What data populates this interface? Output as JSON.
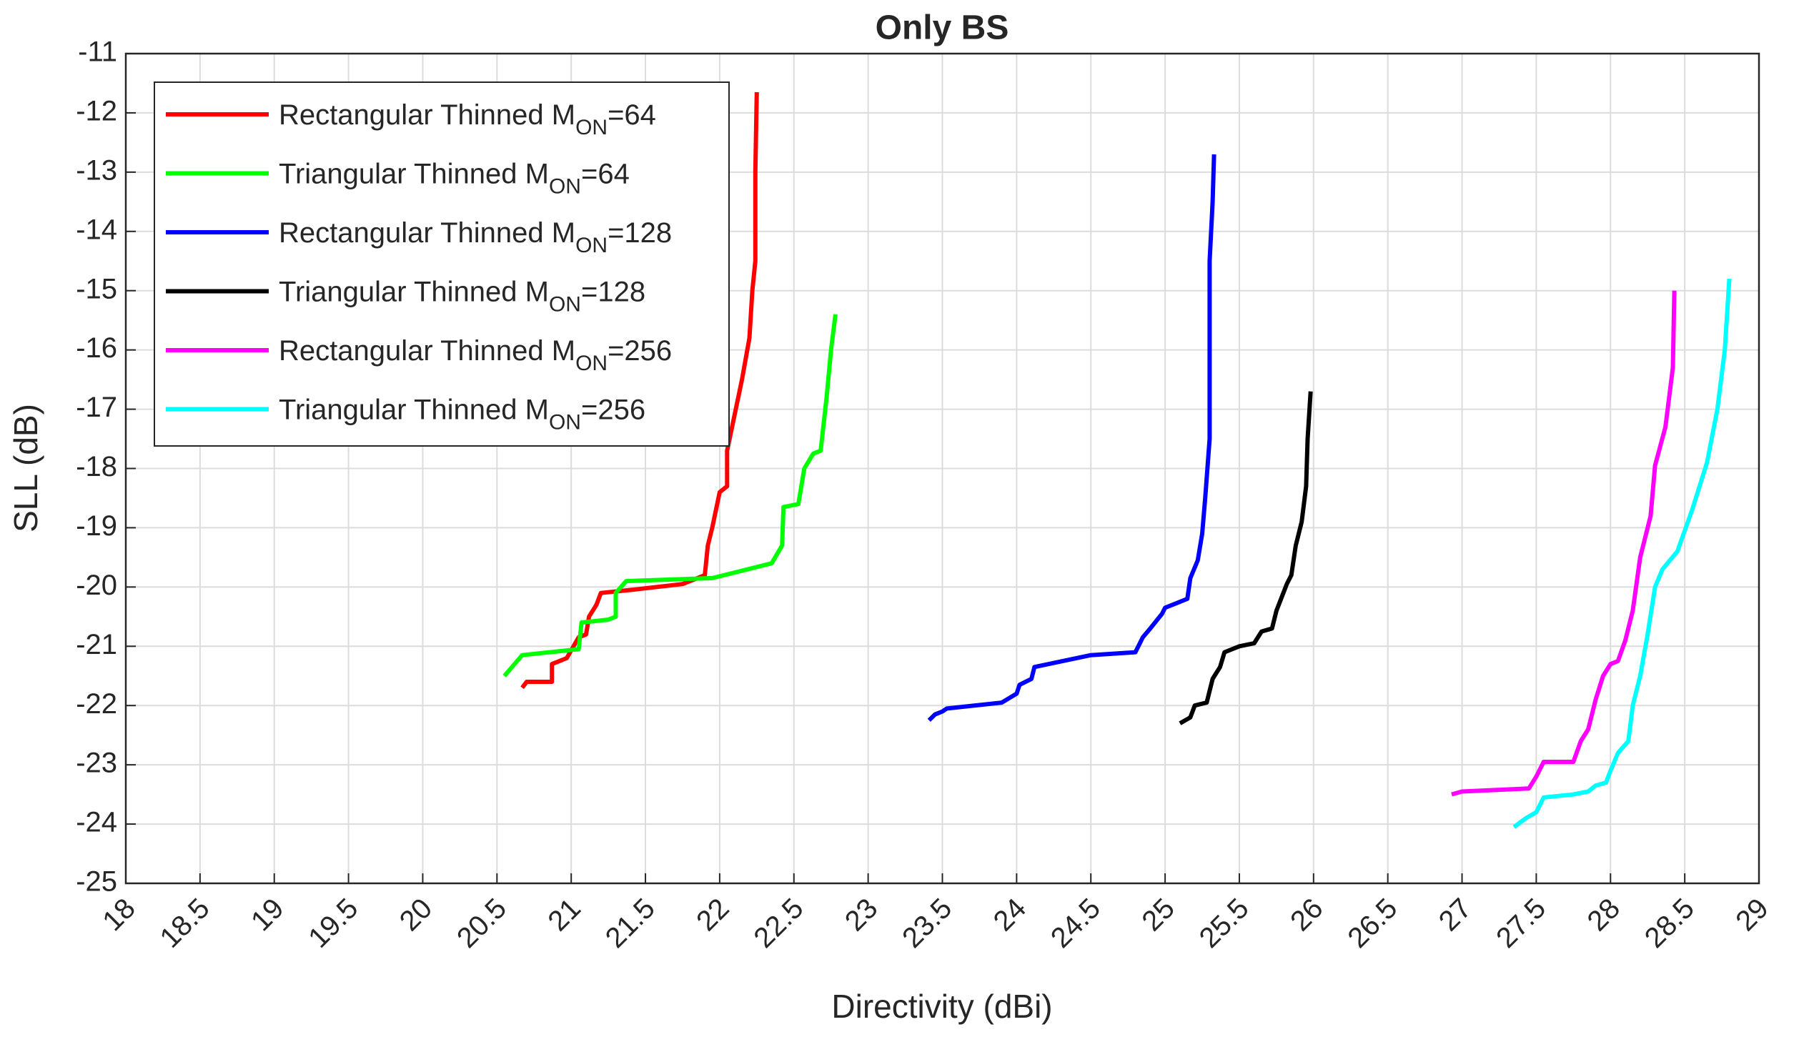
{
  "chart_data": {
    "type": "line",
    "title": "Only BS",
    "x_label": "Directivity (dBi)",
    "y_label": "SLL (dB)",
    "xlim": [
      18,
      29
    ],
    "ylim": [
      -25,
      -11
    ],
    "xticks": [
      18,
      18.5,
      19,
      19.5,
      20,
      20.5,
      21,
      21.5,
      22,
      22.5,
      23,
      23.5,
      24,
      24.5,
      25,
      25.5,
      26,
      26.5,
      27,
      27.5,
      28,
      28.5,
      29
    ],
    "yticks": [
      -25,
      -24,
      -23,
      -22,
      -21,
      -20,
      -19,
      -18,
      -17,
      -16,
      -15,
      -14,
      -13,
      -12,
      -11
    ],
    "grid": true,
    "legend": "upper-left",
    "series": [
      {
        "name": "Rectangular Thinned MON=64",
        "color": "#ff0000",
        "x": [
          20.67,
          20.7,
          20.87,
          20.87,
          20.97,
          21.05,
          21.1,
          21.12,
          21.17,
          21.2,
          21.4,
          21.75,
          21.9,
          21.92,
          21.95,
          22.0,
          22.05,
          22.05,
          22.1,
          22.15,
          22.2,
          22.22,
          22.24,
          22.24,
          22.25
        ],
        "values": [
          -21.7,
          -21.6,
          -21.6,
          -21.3,
          -21.2,
          -20.85,
          -20.8,
          -20.5,
          -20.3,
          -20.1,
          -20.05,
          -19.95,
          -19.8,
          -19.3,
          -19.0,
          -18.4,
          -18.3,
          -17.7,
          -17.1,
          -16.5,
          -15.8,
          -15.0,
          -14.5,
          -13.0,
          -11.65
        ]
      },
      {
        "name": "Triangular Thinned MON=64",
        "color": "#00ff00",
        "x": [
          20.55,
          20.67,
          21.05,
          21.07,
          21.25,
          21.3,
          21.3,
          21.37,
          21.95,
          22.35,
          22.42,
          22.43,
          22.53,
          22.57,
          22.63,
          22.68,
          22.72,
          22.75,
          22.78
        ],
        "values": [
          -21.5,
          -21.15,
          -21.05,
          -20.6,
          -20.55,
          -20.5,
          -20.1,
          -19.9,
          -19.85,
          -19.6,
          -19.3,
          -18.65,
          -18.6,
          -18.0,
          -17.75,
          -17.7,
          -16.8,
          -16.0,
          -15.4
        ]
      },
      {
        "name": "Rectangular Thinned MON=128",
        "color": "#0000ff",
        "x": [
          23.41,
          23.45,
          23.5,
          23.53,
          23.9,
          24.0,
          24.02,
          24.1,
          24.12,
          24.5,
          24.8,
          24.85,
          24.9,
          24.98,
          25.0,
          25.15,
          25.17,
          25.22,
          25.25,
          25.27,
          25.3,
          25.3,
          25.32,
          25.33
        ],
        "values": [
          -22.25,
          -22.15,
          -22.1,
          -22.05,
          -21.95,
          -21.8,
          -21.65,
          -21.55,
          -21.35,
          -21.15,
          -21.1,
          -20.85,
          -20.7,
          -20.45,
          -20.35,
          -20.2,
          -19.85,
          -19.55,
          -19.1,
          -18.5,
          -17.5,
          -14.5,
          -13.5,
          -12.7
        ]
      },
      {
        "name": "Triangular Thinned MON=128",
        "color": "#000000",
        "x": [
          25.1,
          25.17,
          25.2,
          25.28,
          25.32,
          25.37,
          25.4,
          25.5,
          25.6,
          25.65,
          25.72,
          25.75,
          25.82,
          25.85,
          25.88,
          25.92,
          25.95,
          25.96,
          25.98
        ],
        "values": [
          -22.3,
          -22.2,
          -22.0,
          -21.95,
          -21.55,
          -21.35,
          -21.1,
          -21.0,
          -20.95,
          -20.75,
          -20.7,
          -20.4,
          -19.95,
          -19.8,
          -19.3,
          -18.9,
          -18.3,
          -17.5,
          -16.7
        ]
      },
      {
        "name": "Rectangular Thinned MON=256",
        "color": "#ff00ff",
        "x": [
          26.93,
          27.0,
          27.45,
          27.5,
          27.55,
          27.75,
          27.8,
          27.85,
          27.9,
          27.95,
          28.0,
          28.05,
          28.1,
          28.15,
          28.2,
          28.27,
          28.3,
          28.37,
          28.42,
          28.43
        ],
        "values": [
          -23.5,
          -23.45,
          -23.4,
          -23.2,
          -22.95,
          -22.95,
          -22.6,
          -22.4,
          -21.9,
          -21.5,
          -21.3,
          -21.25,
          -20.9,
          -20.4,
          -19.5,
          -18.8,
          -17.95,
          -17.3,
          -16.3,
          -15.0
        ]
      },
      {
        "name": "Triangular Thinned MON=256",
        "color": "#00ffff",
        "x": [
          27.35,
          27.43,
          27.5,
          27.55,
          27.75,
          27.85,
          27.9,
          27.97,
          28.0,
          28.05,
          28.12,
          28.15,
          28.2,
          28.25,
          28.3,
          28.35,
          28.45,
          28.55,
          28.65,
          28.72,
          28.77,
          28.8
        ],
        "values": [
          -24.05,
          -23.9,
          -23.8,
          -23.55,
          -23.5,
          -23.45,
          -23.35,
          -23.3,
          -23.1,
          -22.8,
          -22.6,
          -22.0,
          -21.5,
          -20.8,
          -20.0,
          -19.7,
          -19.4,
          -18.7,
          -17.9,
          -17.0,
          -16.0,
          -14.8
        ]
      }
    ]
  }
}
